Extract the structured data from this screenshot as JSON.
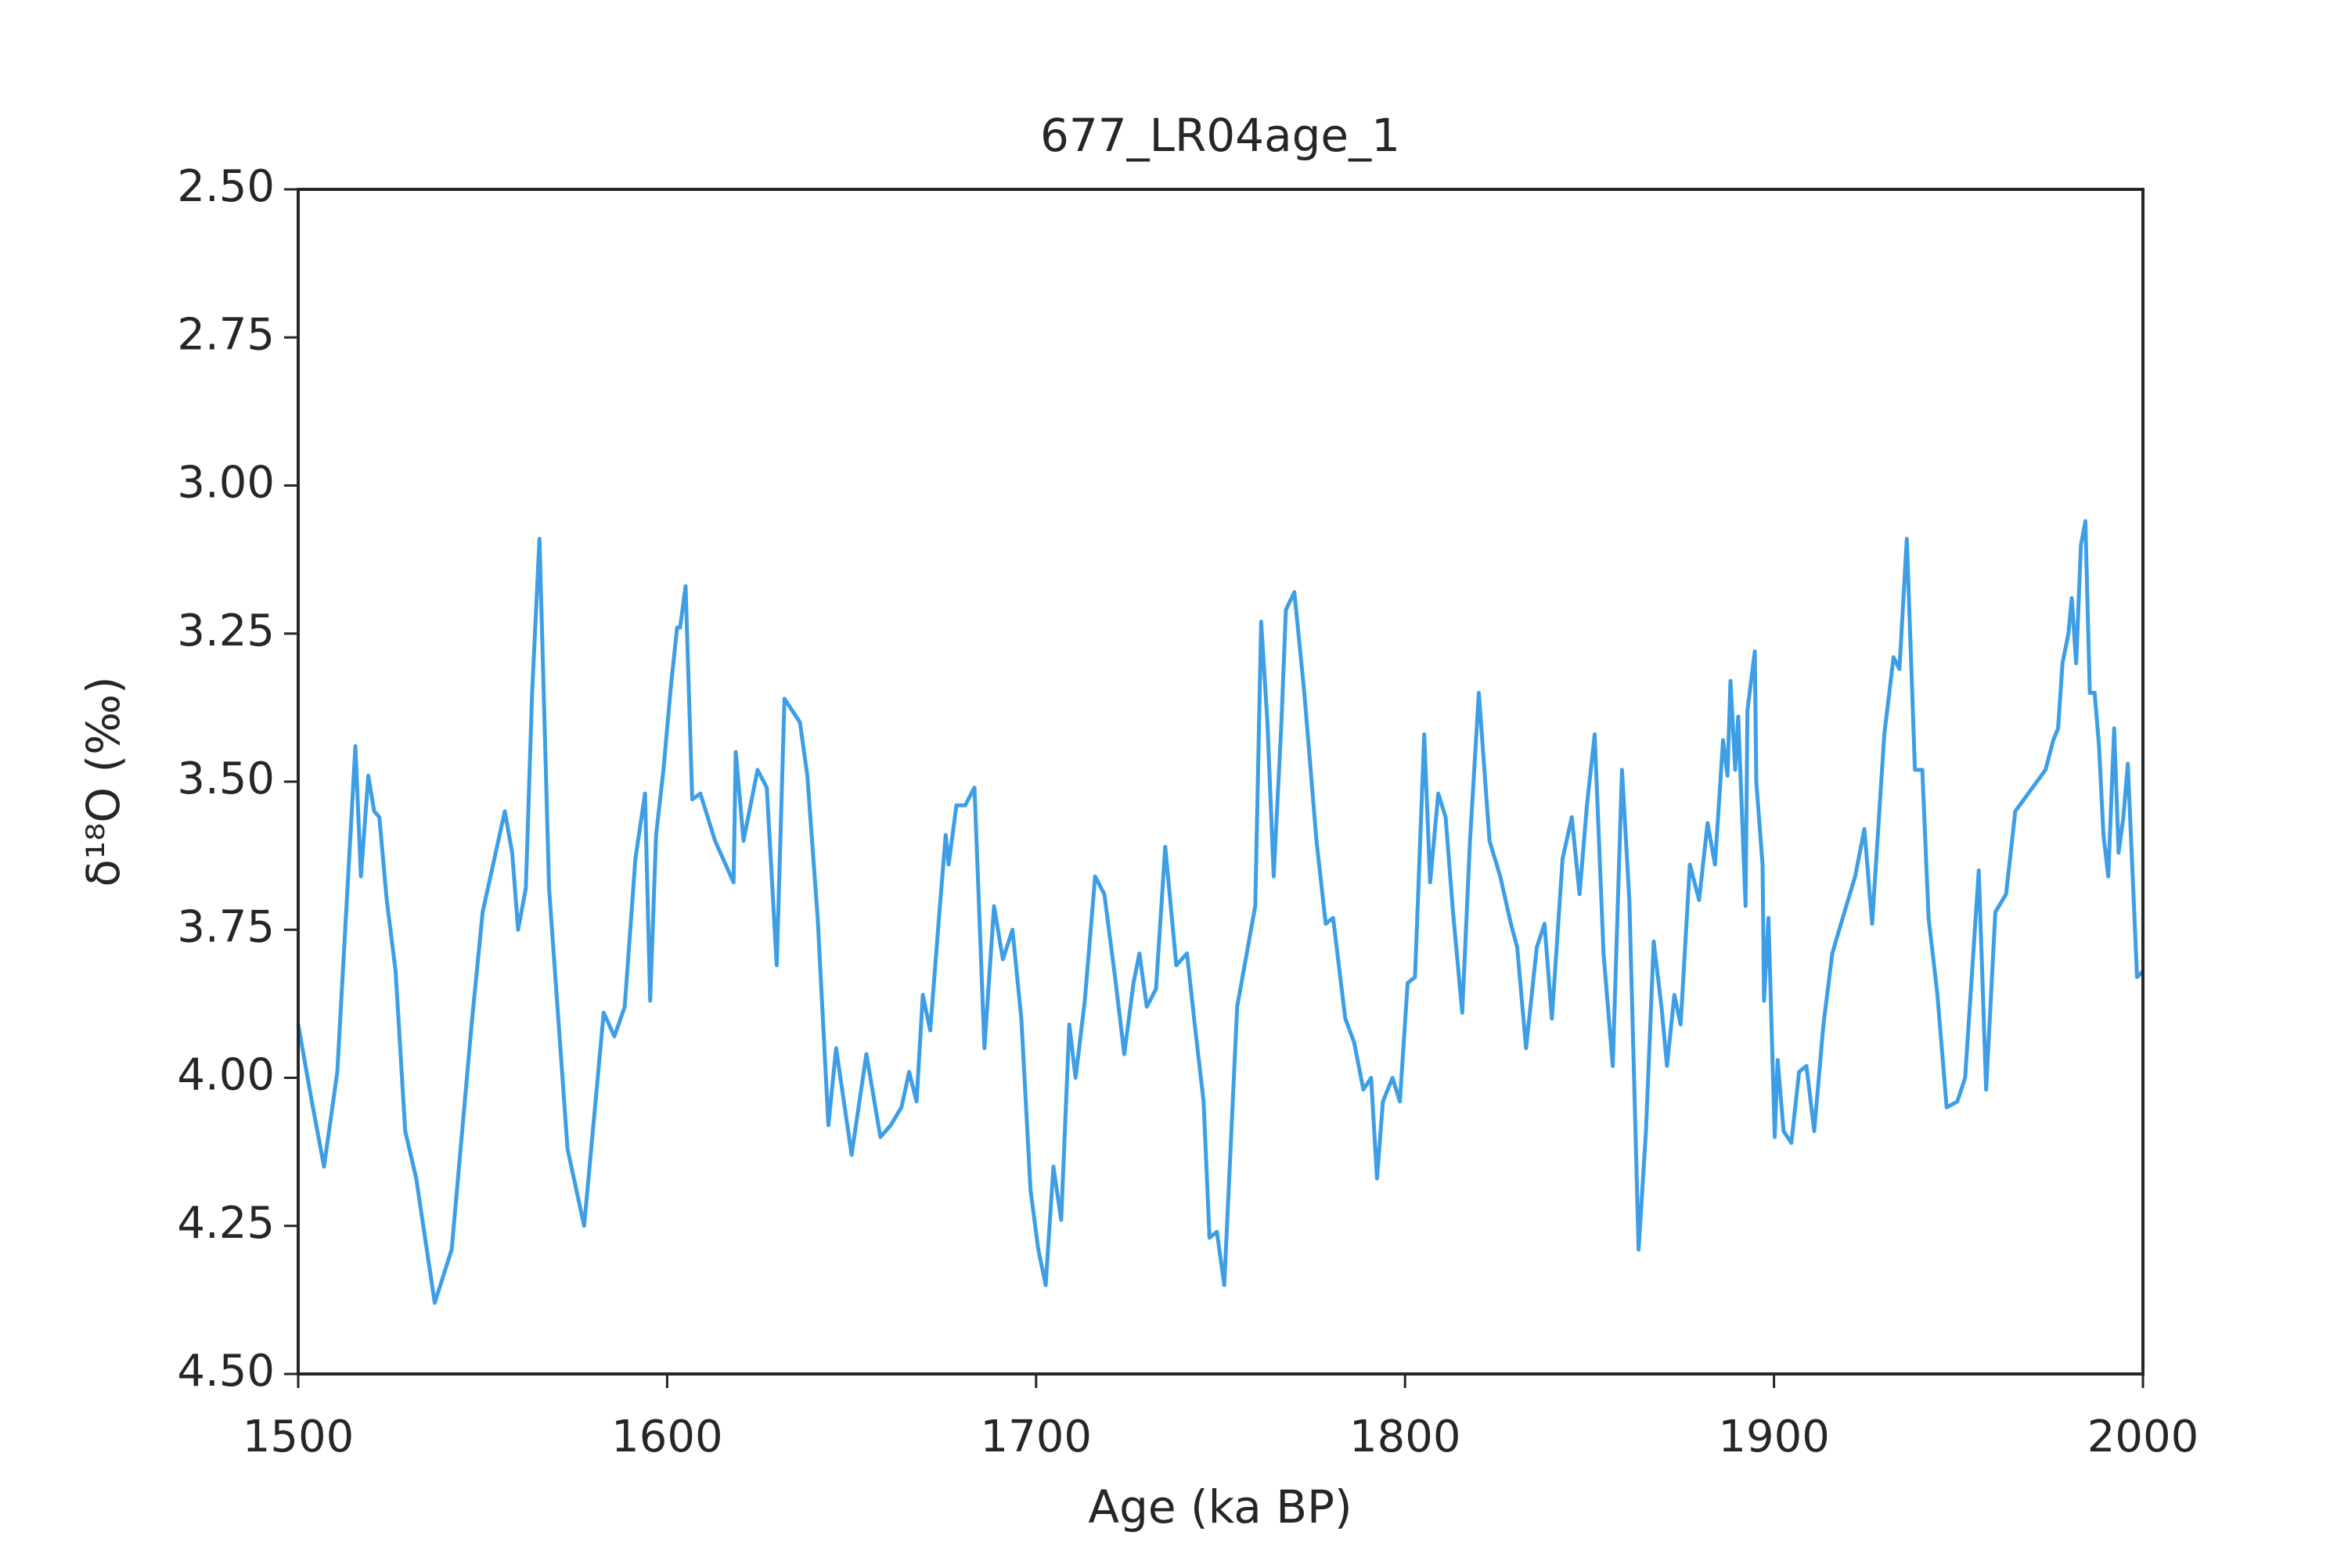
{
  "chart_data": {
    "type": "line",
    "title": "677_LR04age_1",
    "xlabel": "Age (ka BP)",
    "ylabel": "δ¹⁸O (‰)",
    "color": "#3d9ee6",
    "xlim": [
      1500,
      2000
    ],
    "xticks": [
      1500,
      1600,
      1700,
      1800,
      1900,
      2000
    ],
    "ylim": [
      4.5,
      2.5
    ],
    "yticks": [
      {
        "value": 2.5,
        "label": "2.50"
      },
      {
        "value": 2.75,
        "label": "2.75"
      },
      {
        "value": 3.0,
        "label": "3.00"
      },
      {
        "value": 3.25,
        "label": "3.25"
      },
      {
        "value": 3.5,
        "label": "3.50"
      },
      {
        "value": 3.75,
        "label": "3.75"
      },
      {
        "value": 4.0,
        "label": "4.00"
      },
      {
        "value": 4.25,
        "label": "4.25"
      },
      {
        "value": 4.5,
        "label": "4.50"
      }
    ],
    "x": [
      1500,
      1503.7,
      1507,
      1510.6,
      1515.5,
      1517,
      1519,
      1520.6,
      1522,
      1524,
      1526.4,
      1529,
      1532,
      1537,
      1541.6,
      1547,
      1550,
      1556,
      1558,
      1559.6,
      1561.7,
      1563.4,
      1565.4,
      1568,
      1573,
      1577.5,
      1582.8,
      1585.7,
      1588.5,
      1591.4,
      1594,
      1595.4,
      1597,
      1599,
      1601,
      1602.7,
      1603.5,
      1605,
      1606.8,
      1609,
      1613,
      1618,
      1618.6,
      1620.7,
      1624.5,
      1627,
      1629.7,
      1631.8,
      1636,
      1638,
      1640.8,
      1643.7,
      1645.8,
      1650,
      1654,
      1657.8,
      1660.6,
      1663.5,
      1665.6,
      1667.6,
      1669.3,
      1671.3,
      1673.8,
      1675.5,
      1676.3,
      1678.4,
      1680.8,
      1683.3,
      1686,
      1688.6,
      1691,
      1693.6,
      1696,
      1698.5,
      1700.6,
      1702.6,
      1704.7,
      1706.8,
      1709,
      1710.7,
      1713.2,
      1716,
      1718.5,
      1721.4,
      1723.9,
      1726.4,
      1728,
      1730,
      1732.5,
      1735,
      1738,
      1740.9,
      1743,
      1745.4,
      1747,
      1749,
      1751,
      1754.5,
      1759.4,
      1761,
      1762.7,
      1764.4,
      1766.5,
      1767.7,
      1770,
      1772.7,
      1776,
      1778.5,
      1780.5,
      1783.8,
      1786.2,
      1788.7,
      1790.8,
      1792.4,
      1794,
      1796.6,
      1798.6,
      1800.7,
      1802.7,
      1805.2,
      1806.8,
      1809,
      1811,
      1813,
      1815.5,
      1817.6,
      1820,
      1822.9,
      1825.8,
      1828.7,
      1830.4,
      1832.8,
      1835.7,
      1837.8,
      1839.8,
      1842.7,
      1845.2,
      1847.3,
      1849.3,
      1851.4,
      1853.8,
      1856.3,
      1858.8,
      1860.8,
      1863.3,
      1865.3,
      1867.4,
      1869.5,
      1871,
      1873,
      1874.7,
      1877.2,
      1879.7,
      1882,
      1884,
      1886.2,
      1887.4,
      1888.2,
      1889.5,
      1890.3,
      1892.3,
      1892.8,
      1894.8,
      1895.2,
      1896.9,
      1897.3,
      1898.5,
      1900.2,
      1901,
      1902.6,
      1904.7,
      1906.8,
      1908.8,
      1910.9,
      1913.4,
      1915.8,
      1919.1,
      1922,
      1924.5,
      1926.6,
      1929.9,
      1932.4,
      1934,
      1936,
      1938.2,
      1940.2,
      1941.9,
      1944.3,
      1946.8,
      1949.7,
      1951.8,
      1955.5,
      1957.5,
      1960,
      1962.9,
      1965.4,
      1973.6,
      1975.7,
      1977,
      1978.2,
      1979.8,
      1980.7,
      1981.9,
      1983.2,
      1984.4,
      1985.6,
      1986.9,
      1988.1,
      1989.3,
      1990.6,
      1992.2,
      1993.4,
      1994.7,
      1995.9,
      1998.4,
      2000
    ],
    "values": [
      3.91,
      4.04,
      4.15,
      3.99,
      3.44,
      3.66,
      3.49,
      3.55,
      3.56,
      3.7,
      3.82,
      4.09,
      4.17,
      4.38,
      4.29,
      3.91,
      3.72,
      3.55,
      3.62,
      3.75,
      3.68,
      3.35,
      3.09,
      3.68,
      4.12,
      4.25,
      3.89,
      3.93,
      3.88,
      3.63,
      3.52,
      3.87,
      3.59,
      3.48,
      3.34,
      3.24,
      3.24,
      3.17,
      3.53,
      3.52,
      3.6,
      3.67,
      3.45,
      3.6,
      3.48,
      3.51,
      3.81,
      3.36,
      3.4,
      3.49,
      3.73,
      4.08,
      3.95,
      4.13,
      3.96,
      4.1,
      4.08,
      4.05,
      3.99,
      4.04,
      3.86,
      3.92,
      3.72,
      3.59,
      3.64,
      3.54,
      3.54,
      3.51,
      3.95,
      3.71,
      3.8,
      3.75,
      3.9,
      4.19,
      4.29,
      4.35,
      4.15,
      4.24,
      3.91,
      4.0,
      3.87,
      3.66,
      3.69,
      3.83,
      3.96,
      3.84,
      3.79,
      3.88,
      3.85,
      3.61,
      3.81,
      3.79,
      3.91,
      4.04,
      4.27,
      4.26,
      4.35,
      3.88,
      3.71,
      3.23,
      3.4,
      3.66,
      3.4,
      3.21,
      3.18,
      3.35,
      3.6,
      3.74,
      3.73,
      3.9,
      3.94,
      4.02,
      4.0,
      4.17,
      4.04,
      4.0,
      4.04,
      3.84,
      3.83,
      3.42,
      3.67,
      3.52,
      3.56,
      3.72,
      3.89,
      3.6,
      3.35,
      3.6,
      3.66,
      3.74,
      3.78,
      3.95,
      3.78,
      3.74,
      3.9,
      3.63,
      3.56,
      3.69,
      3.54,
      3.42,
      3.79,
      3.98,
      3.48,
      3.7,
      4.29,
      4.09,
      3.77,
      3.88,
      3.98,
      3.86,
      3.91,
      3.64,
      3.7,
      3.57,
      3.64,
      3.43,
      3.49,
      3.33,
      3.48,
      3.39,
      3.71,
      3.38,
      3.28,
      3.5,
      3.64,
      3.87,
      3.73,
      4.1,
      3.97,
      4.09,
      4.11,
      3.99,
      3.98,
      4.09,
      3.91,
      3.79,
      3.72,
      3.66,
      3.58,
      3.74,
      3.42,
      3.29,
      3.31,
      3.09,
      3.48,
      3.48,
      3.73,
      3.86,
      4.05,
      4.04,
      4.0,
      3.65,
      4.02,
      3.72,
      3.69,
      3.55,
      3.48,
      3.43,
      3.41,
      3.3,
      3.25,
      3.19,
      3.3,
      3.1,
      3.06,
      3.35,
      3.35,
      3.44,
      3.59,
      3.66,
      3.41,
      3.62,
      3.56,
      3.47,
      3.83,
      3.82
    ]
  }
}
